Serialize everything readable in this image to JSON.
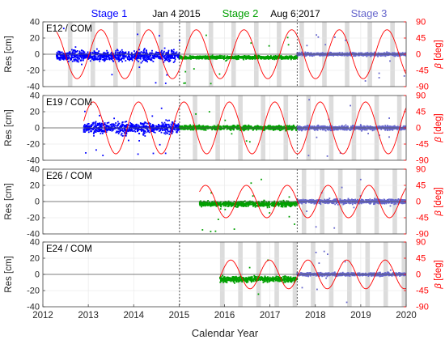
{
  "figure": {
    "xlabel": "Calendar Year",
    "left_axis_label": "Res [cm]",
    "right_axis_label_symbol": "β",
    "right_axis_label_unit": " [deg]",
    "stages": [
      {
        "label": "Stage 1",
        "color": "#0000ff"
      },
      {
        "label": "Stage 2",
        "color": "#00a000"
      },
      {
        "label": "Stage 3",
        "color": "#6666cc"
      }
    ],
    "events": [
      {
        "label": "Jan 4 2015",
        "date": 2015.01
      },
      {
        "label": "Aug 6 2017",
        "date": 2017.6
      }
    ],
    "beta_color": "#ff0000"
  },
  "chart_data": [
    {
      "type": "scatter",
      "panel": "E12 / COM",
      "xlim": [
        2012,
        2020
      ],
      "ylim": [
        -40,
        40
      ],
      "ylim_right": [
        -90,
        90
      ],
      "yticks": [
        -40,
        -20,
        0,
        20,
        40
      ],
      "yticks_right": [
        -90,
        -45,
        0,
        45,
        90
      ],
      "xticks": [
        2012,
        2013,
        2014,
        2015,
        2016,
        2017,
        2018,
        2019,
        2020
      ],
      "grid": true,
      "data_start": 2012.3,
      "series": [
        {
          "name": "Stage 1",
          "x_range": [
            2012.3,
            2015.01
          ],
          "mean": -2,
          "spread": 12
        },
        {
          "name": "Stage 2",
          "x_range": [
            2015.01,
            2017.6
          ],
          "mean": -4,
          "spread": 3
        },
        {
          "name": "Stage 3",
          "x_range": [
            2017.6,
            2020.0
          ],
          "mean": 0,
          "spread": 3
        }
      ],
      "beta": {
        "amplitude_deg": 68,
        "period_years": 1.05,
        "phase": 0.2
      },
      "eclipse_bands": [
        [
          2012.55,
          2012.65
        ],
        [
          2013.05,
          2013.15
        ],
        [
          2013.55,
          2013.65
        ],
        [
          2014.05,
          2014.15
        ],
        [
          2014.55,
          2014.65
        ],
        [
          2015.15,
          2015.25
        ],
        [
          2015.65,
          2015.75
        ],
        [
          2016.15,
          2016.25
        ],
        [
          2016.65,
          2016.75
        ],
        [
          2017.15,
          2017.25
        ],
        [
          2017.65,
          2017.75
        ],
        [
          2018.15,
          2018.25
        ],
        [
          2018.65,
          2018.75
        ],
        [
          2019.15,
          2019.25
        ],
        [
          2019.65,
          2019.75
        ]
      ]
    },
    {
      "type": "scatter",
      "panel": "E19 / COM",
      "xlim": [
        2012,
        2020
      ],
      "ylim": [
        -40,
        40
      ],
      "ylim_right": [
        -90,
        90
      ],
      "yticks": [
        -40,
        -20,
        0,
        20,
        40
      ],
      "yticks_right": [
        -90,
        -45,
        0,
        45,
        90
      ],
      "xticks": [
        2012,
        2013,
        2014,
        2015,
        2016,
        2017,
        2018,
        2019,
        2020
      ],
      "grid": true,
      "data_start": 2012.9,
      "series": [
        {
          "name": "Stage 1",
          "x_range": [
            2012.9,
            2015.01
          ],
          "mean": 0,
          "spread": 12
        },
        {
          "name": "Stage 2",
          "x_range": [
            2015.01,
            2017.6
          ],
          "mean": 0,
          "spread": 4
        },
        {
          "name": "Stage 3",
          "x_range": [
            2017.6,
            2020.0
          ],
          "mean": 0,
          "spread": 4
        }
      ],
      "beta": {
        "amplitude_deg": 72,
        "period_years": 1.0,
        "phase": 0.9
      },
      "eclipse_bands": [
        [
          2015.3,
          2015.4
        ],
        [
          2015.8,
          2015.9
        ],
        [
          2016.3,
          2016.4
        ],
        [
          2016.8,
          2016.9
        ],
        [
          2017.3,
          2017.4
        ],
        [
          2017.8,
          2017.9
        ],
        [
          2018.3,
          2018.4
        ],
        [
          2018.8,
          2018.9
        ],
        [
          2019.3,
          2019.4
        ],
        [
          2019.8,
          2019.9
        ]
      ]
    },
    {
      "type": "scatter",
      "panel": "E26 / COM",
      "xlim": [
        2012,
        2020
      ],
      "ylim": [
        -40,
        40
      ],
      "ylim_right": [
        -90,
        90
      ],
      "yticks": [
        -40,
        -20,
        0,
        20,
        40
      ],
      "yticks_right": [
        -90,
        -45,
        0,
        45,
        90
      ],
      "xticks": [
        2012,
        2013,
        2014,
        2015,
        2016,
        2017,
        2018,
        2019,
        2020
      ],
      "grid": true,
      "data_start": 2015.45,
      "series": [
        {
          "name": "Stage 2",
          "x_range": [
            2015.45,
            2017.6
          ],
          "mean": -3,
          "spread": 5
        },
        {
          "name": "Stage 3",
          "x_range": [
            2017.6,
            2020.0
          ],
          "mean": 0,
          "spread": 4
        }
      ],
      "beta": {
        "amplitude_deg": 45,
        "period_years": 0.9,
        "phase": 1.7
      },
      "eclipse_bands": [
        [
          2017.7,
          2017.8
        ],
        [
          2018.1,
          2018.2
        ],
        [
          2018.5,
          2018.6
        ],
        [
          2018.9,
          2019.0
        ],
        [
          2019.3,
          2019.4
        ],
        [
          2019.7,
          2019.8
        ]
      ]
    },
    {
      "type": "scatter",
      "panel": "E24 / COM",
      "xlim": [
        2012,
        2020
      ],
      "ylim": [
        -40,
        40
      ],
      "ylim_right": [
        -90,
        90
      ],
      "yticks": [
        -40,
        -20,
        0,
        20,
        40
      ],
      "yticks_right": [
        -90,
        -45,
        0,
        45,
        90
      ],
      "xticks": [
        2012,
        2013,
        2014,
        2015,
        2016,
        2017,
        2018,
        2019,
        2020
      ],
      "grid": true,
      "data_start": 2015.9,
      "series": [
        {
          "name": "Stage 2",
          "x_range": [
            2015.9,
            2017.6
          ],
          "mean": -6,
          "spread": 5
        },
        {
          "name": "Stage 3",
          "x_range": [
            2017.6,
            2020.0
          ],
          "mean": 0,
          "spread": 3
        }
      ],
      "beta": {
        "amplitude_deg": 40,
        "period_years": 0.85,
        "phase": 2.4
      },
      "eclipse_bands": [
        [
          2015.9,
          2016.0
        ],
        [
          2016.3,
          2016.4
        ],
        [
          2016.7,
          2016.8
        ],
        [
          2017.1,
          2017.2
        ],
        [
          2017.5,
          2017.6
        ],
        [
          2017.9,
          2018.0
        ],
        [
          2018.3,
          2018.4
        ],
        [
          2018.7,
          2018.8
        ],
        [
          2019.1,
          2019.2
        ],
        [
          2019.5,
          2019.6
        ],
        [
          2019.9,
          2020.0
        ]
      ]
    }
  ]
}
